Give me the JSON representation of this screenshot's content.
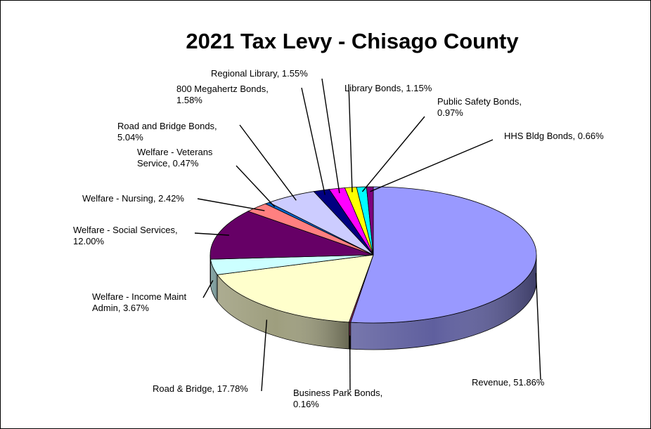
{
  "chart_data": {
    "type": "pie",
    "title": "2021 Tax Levy - Chisago County",
    "slices": [
      {
        "name": "Revenue",
        "label_lines": [
          "Revenue, 51.86%"
        ],
        "value": 51.86,
        "color": "#9999FF"
      },
      {
        "name": "Business Park Bonds",
        "label_lines": [
          "Business Park Bonds,",
          "0.16%"
        ],
        "value": 0.16,
        "color": "#993366"
      },
      {
        "name": "Road & Bridge",
        "label_lines": [
          "Road & Bridge, 17.78%"
        ],
        "value": 17.78,
        "color": "#FFFFCC"
      },
      {
        "name": "Welfare - Income Maint Admin",
        "label_lines": [
          "Welfare - Income Maint",
          "Admin, 3.67%"
        ],
        "value": 3.67,
        "color": "#CCFFFF"
      },
      {
        "name": "Welfare - Social Services",
        "label_lines": [
          "Welfare - Social Services,",
          "12.00%"
        ],
        "value": 12.0,
        "color": "#660066"
      },
      {
        "name": "Welfare - Nursing",
        "label_lines": [
          "Welfare - Nursing, 2.42%"
        ],
        "value": 2.42,
        "color": "#FF8080"
      },
      {
        "name": "Welfare - Veterans Service",
        "label_lines": [
          "Welfare - Veterans",
          "Service, 0.47%"
        ],
        "value": 0.47,
        "color": "#0066CC"
      },
      {
        "name": "Road and Bridge Bonds",
        "label_lines": [
          "Road and Bridge Bonds,",
          "5.04%"
        ],
        "value": 5.04,
        "color": "#CCCCFF"
      },
      {
        "name": "800 Megahertz Bonds",
        "label_lines": [
          "800 Megahertz Bonds,",
          "1.58%"
        ],
        "value": 1.58,
        "color": "#000080"
      },
      {
        "name": "Regional Library",
        "label_lines": [
          "Regional Library, 1.55%"
        ],
        "value": 1.55,
        "color": "#FF00FF"
      },
      {
        "name": "Library Bonds",
        "label_lines": [
          "Library Bonds, 1.15%"
        ],
        "value": 1.15,
        "color": "#FFFF00"
      },
      {
        "name": "Public Safety Bonds",
        "label_lines": [
          "Public Safety Bonds,",
          "0.97%"
        ],
        "value": 0.97,
        "color": "#00FFFF"
      },
      {
        "name": "HHS Bldg Bonds",
        "label_lines": [
          "HHS Bldg Bonds, 0.66%"
        ],
        "value": 0.66,
        "color": "#800080"
      }
    ]
  }
}
